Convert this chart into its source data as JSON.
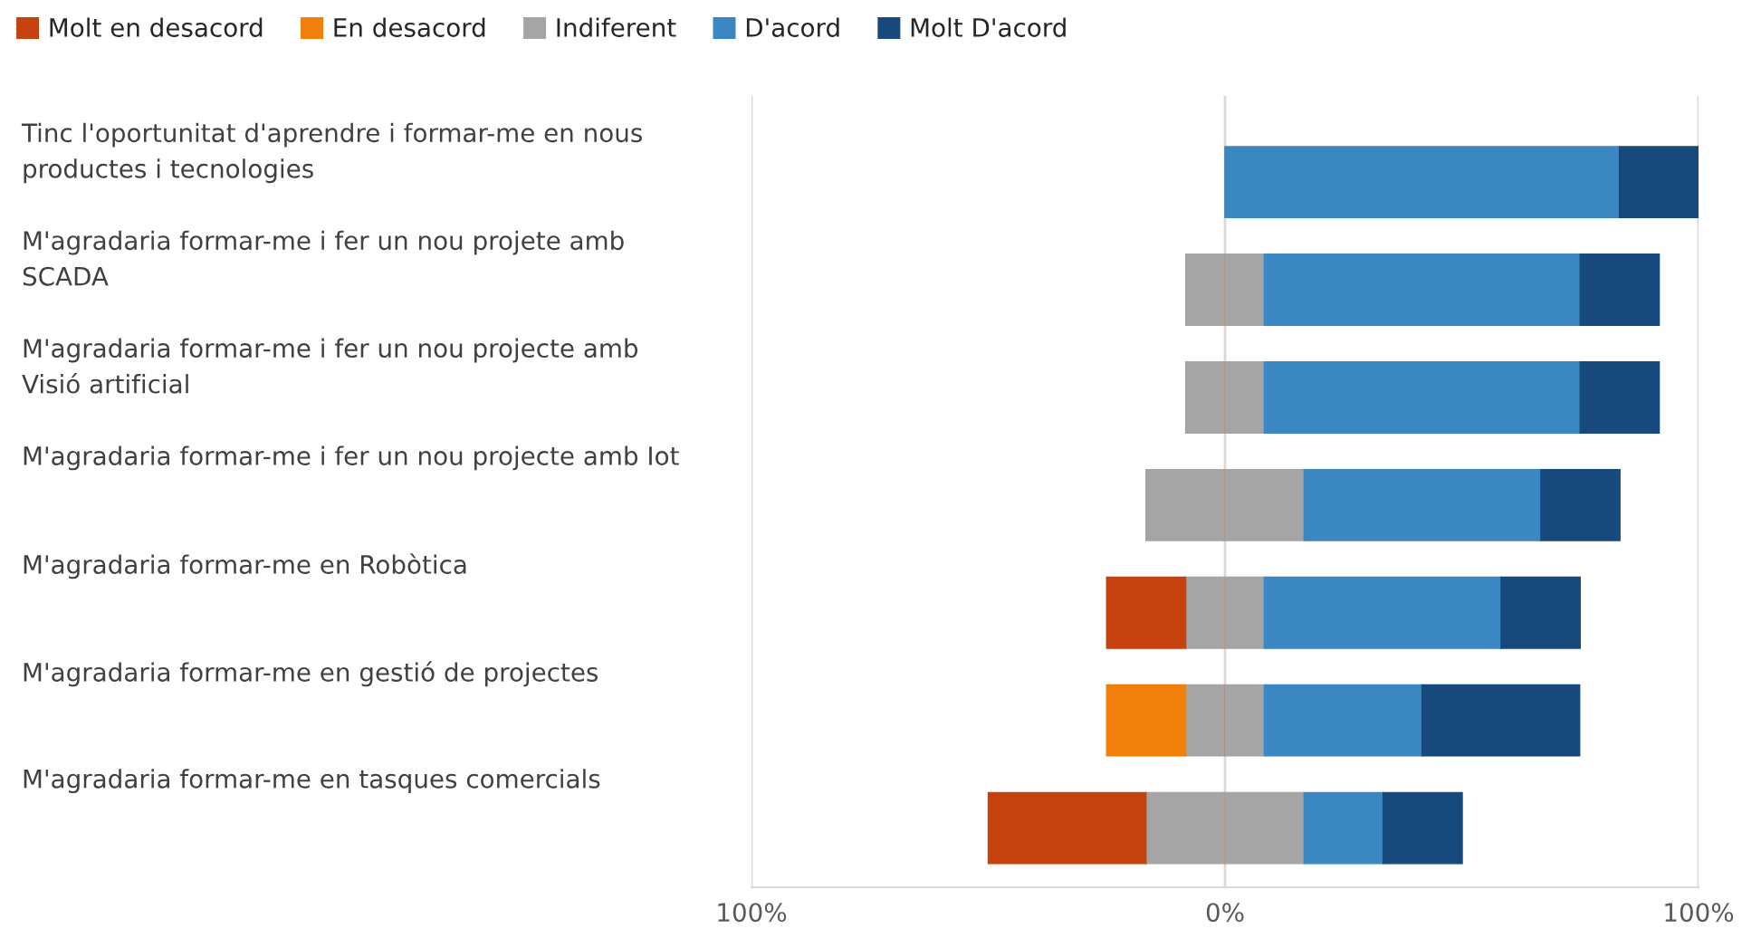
{
  "chart_data": {
    "type": "bar",
    "orientation": "horizontal",
    "stacked": true,
    "categories": [
      "Tinc l'oportunitat d'aprendre i formar-me en nous\nproductes i tecnologies",
      "M'agradaria formar-me i fer un nou projete amb\nSCADA",
      "M'agradaria formar-me i fer un nou projecte amb\nVisió artificial",
      "M'agradaria formar-me i fer un nou projecte amb Iot",
      "M'agradaria formar-me en Robòtica",
      "M'agradaria formar-me en gestió de projectes",
      "M'agradaria formar-me en tasques comercials"
    ],
    "series": [
      {
        "color": "#a5a5a5",
        "values": [
          0,
          -8.3,
          -8.3,
          -16.7,
          -8.3,
          -8.3,
          -16.7
        ]
      },
      {
        "name": "Molt en desacord",
        "color": "#c5420f",
        "values": [
          0,
          0,
          0,
          0,
          -16.7,
          0,
          -33.3
        ]
      },
      {
        "name": "En desacord",
        "color": "#f0800a",
        "values": [
          0,
          0,
          0,
          0,
          0,
          -16.7,
          0
        ]
      },
      {
        "name": "Indiferent",
        "color": "#a5a5a5",
        "values": [
          0,
          8.3,
          8.3,
          16.7,
          8.3,
          8.3,
          16.7
        ]
      },
      {
        "name": "D'acord",
        "color": "#3b87c2",
        "values": [
          83.3,
          66.7,
          66.7,
          50,
          50,
          33.3,
          16.7
        ]
      },
      {
        "name": "Molt D'acord",
        "color": "#17497c",
        "values": [
          16.7,
          16.7,
          16.7,
          16.7,
          16.7,
          33.3,
          16.7
        ]
      }
    ],
    "xlim": [
      -100,
      100
    ],
    "xticks": [
      {
        "value": -100,
        "label": "100%"
      },
      {
        "value": 0,
        "label": "0%"
      },
      {
        "value": 100,
        "label": "100%"
      }
    ],
    "grid": "x",
    "legend": "top left"
  }
}
